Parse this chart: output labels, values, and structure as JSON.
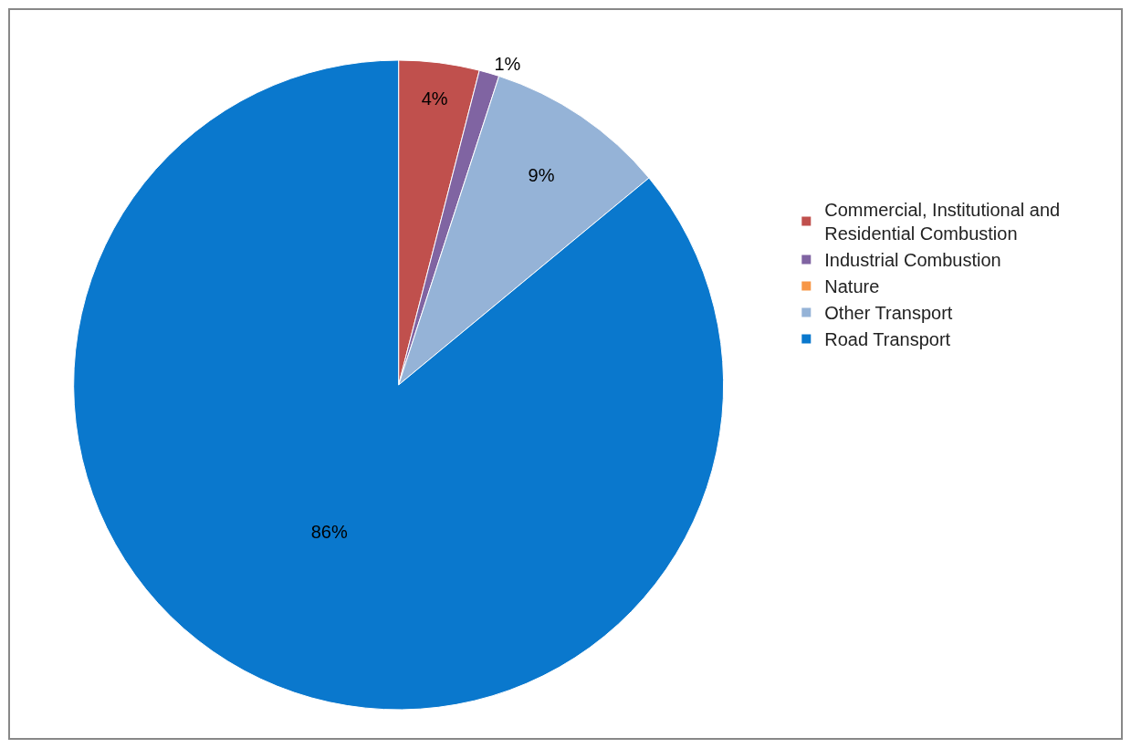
{
  "chart_data": {
    "type": "pie",
    "categories": [
      "Commercial, Institutional and Residential Combustion",
      "Industrial Combustion",
      "Nature",
      "Other Transport",
      "Road Transport"
    ],
    "values": [
      4,
      1,
      0,
      9,
      86
    ],
    "value_labels": [
      "4%",
      "1%",
      null,
      "9%",
      "86%"
    ],
    "colors": [
      "#c0504d",
      "#8064a2",
      "#f79646",
      "#95b3d7",
      "#0a78cd"
    ],
    "legend": "right"
  }
}
